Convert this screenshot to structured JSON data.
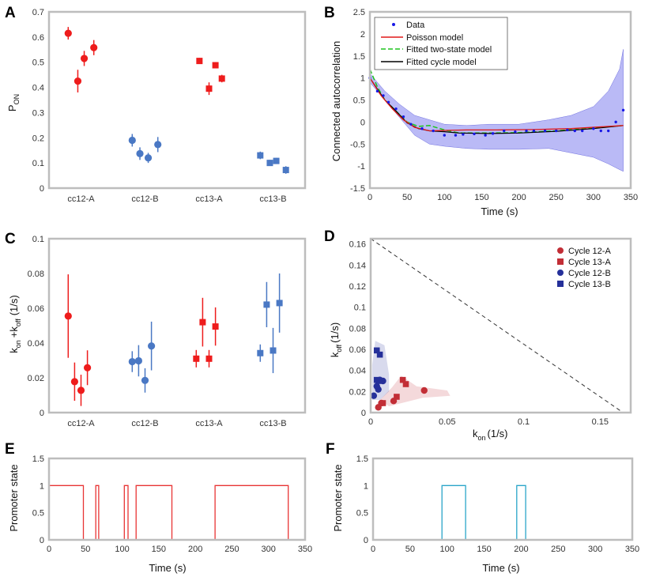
{
  "figure": {
    "colors": {
      "red": "#ee1c1c",
      "blue": "#4a78c4",
      "dark_red": "#c22e36",
      "navy": "#25309a",
      "frame": "#bdbdbd",
      "band": "#8c8cf0",
      "green": "#1ec41e",
      "black": "#000000",
      "trace_red": "#e83434",
      "trace_teal": "#2aa5c9"
    }
  },
  "chart_data": [
    {
      "id": "A",
      "panel_label": "A",
      "type": "scatter",
      "ylabel": "P",
      "ylabel_sub": "ON",
      "ylim": [
        0,
        0.7
      ],
      "yticks": [
        "0",
        "0.1",
        "0.2",
        "0.3",
        "0.4",
        "0.5",
        "0.6",
        "0.7"
      ],
      "categories": [
        "cc12-A",
        "cc12-B",
        "cc13-A",
        "cc13-B"
      ],
      "groups": [
        {
          "category": "cc12-A",
          "color": "red",
          "marker": "circle",
          "x_offsets": [
            -0.2,
            -0.05,
            0.05,
            0.2
          ],
          "values": [
            0.615,
            0.425,
            0.515,
            0.558
          ],
          "err": [
            0.025,
            0.045,
            0.03,
            0.03
          ]
        },
        {
          "category": "cc12-B",
          "color": "blue",
          "marker": "circle",
          "x_offsets": [
            -0.2,
            -0.08,
            0.05,
            0.2
          ],
          "values": [
            0.19,
            0.137,
            0.12,
            0.173
          ],
          "err": [
            0.025,
            0.025,
            0.02,
            0.03
          ]
        },
        {
          "category": "cc13-A",
          "color": "red",
          "marker": "square",
          "x_offsets": [
            -0.15,
            0.0,
            0.1,
            0.2
          ],
          "values": [
            0.505,
            0.395,
            0.488,
            0.435
          ],
          "err": [
            0.012,
            0.025,
            0.012,
            0.015
          ]
        },
        {
          "category": "cc13-B",
          "color": "blue",
          "marker": "square",
          "x_offsets": [
            -0.2,
            -0.05,
            0.05,
            0.2
          ],
          "values": [
            0.13,
            0.1,
            0.108,
            0.072
          ],
          "err": [
            0.015,
            0.012,
            0.012,
            0.015
          ]
        }
      ]
    },
    {
      "id": "B",
      "panel_label": "B",
      "type": "line",
      "xlabel": "Time (s)",
      "ylabel": "Connected autocorrelation",
      "xlim": [
        0,
        350
      ],
      "ylim": [
        -1.5,
        2.5
      ],
      "xticks": [
        "0",
        "50",
        "100",
        "150",
        "200",
        "250",
        "300",
        "350"
      ],
      "yticks": [
        "-1.5",
        "-1",
        "-0.5",
        "0",
        "0.5",
        "1",
        "1.5",
        "2",
        "2.5"
      ],
      "legend_position": "top-left",
      "legend": [
        "Data",
        "Poisson model",
        "Fitted two-state model",
        "Fitted cycle model"
      ],
      "data_points": {
        "x": [
          0,
          10,
          18,
          25,
          35,
          45,
          55,
          70,
          85,
          100,
          115,
          125,
          140,
          155,
          165,
          180,
          195,
          210,
          220,
          235,
          250,
          265,
          275,
          285,
          300,
          310,
          320,
          330,
          340
        ],
        "y": [
          1.0,
          0.7,
          0.6,
          0.45,
          0.3,
          0.12,
          -0.05,
          -0.15,
          -0.2,
          -0.3,
          -0.3,
          -0.28,
          -0.27,
          -0.3,
          -0.26,
          -0.2,
          -0.22,
          -0.2,
          -0.2,
          -0.2,
          -0.2,
          -0.18,
          -0.2,
          -0.2,
          -0.15,
          -0.2,
          -0.2,
          0.0,
          0.27
        ]
      },
      "poisson": {
        "x": [
          0,
          15,
          30,
          45,
          60,
          80,
          100,
          130,
          170,
          220,
          270,
          320,
          340
        ],
        "y": [
          1.0,
          0.6,
          0.3,
          0.05,
          -0.12,
          -0.2,
          -0.19,
          -0.18,
          -0.18,
          -0.17,
          -0.15,
          -0.1,
          -0.08
        ]
      },
      "two_state": {
        "x": [
          0,
          10,
          20,
          35,
          50,
          65,
          80,
          100,
          120,
          160,
          200,
          250,
          300,
          340
        ],
        "y": [
          1.2,
          0.8,
          0.5,
          0.25,
          0.0,
          -0.1,
          -0.08,
          -0.18,
          -0.25,
          -0.25,
          -0.24,
          -0.2,
          -0.14,
          -0.08
        ]
      },
      "cycle": {
        "x": [
          0,
          10,
          20,
          35,
          50,
          65,
          80,
          100,
          120,
          160,
          200,
          250,
          300,
          340
        ],
        "y": [
          1.0,
          0.75,
          0.5,
          0.25,
          -0.02,
          -0.15,
          -0.2,
          -0.22,
          -0.25,
          -0.26,
          -0.25,
          -0.21,
          -0.15,
          -0.08
        ]
      },
      "band_upper": {
        "x": [
          0,
          20,
          40,
          60,
          80,
          100,
          130,
          160,
          200,
          240,
          270,
          300,
          320,
          335,
          340
        ],
        "y": [
          1.1,
          0.7,
          0.4,
          0.15,
          0.05,
          -0.05,
          -0.08,
          -0.05,
          -0.05,
          0.05,
          0.15,
          0.35,
          0.7,
          1.2,
          1.65
        ]
      },
      "band_lower": {
        "x": [
          0,
          20,
          40,
          60,
          80,
          100,
          130,
          160,
          200,
          240,
          270,
          300,
          320,
          335,
          340
        ],
        "y": [
          0.9,
          0.5,
          0.1,
          -0.3,
          -0.5,
          -0.55,
          -0.6,
          -0.62,
          -0.62,
          -0.6,
          -0.7,
          -0.8,
          -0.95,
          -1.08,
          -1.12
        ]
      }
    },
    {
      "id": "C",
      "panel_label": "C",
      "type": "scatter",
      "ylabel": "k",
      "ylabel_sub1": "on",
      "ylabel_mid": "+k",
      "ylabel_sub2": "off",
      "ylabel_unit": "(1/s)",
      "ylim": [
        0,
        0.1
      ],
      "yticks": [
        "0",
        "0.02",
        "0.04",
        "0.06",
        "0.08",
        "0.1"
      ],
      "categories": [
        "cc12-A",
        "cc12-B",
        "cc13-A",
        "cc13-B"
      ],
      "groups": [
        {
          "category": "cc12-A",
          "color": "red",
          "marker": "circle",
          "x_offsets": [
            -0.2,
            -0.1,
            0.0,
            0.1
          ],
          "values": [
            0.0555,
            0.0178,
            0.0128,
            0.0258
          ],
          "err": [
            0.024,
            0.011,
            0.009,
            0.01
          ]
        },
        {
          "category": "cc12-B",
          "color": "blue",
          "marker": "circle",
          "x_offsets": [
            -0.2,
            -0.1,
            0.0,
            0.1
          ],
          "values": [
            0.0293,
            0.0298,
            0.0185,
            0.0383
          ],
          "err": [
            0.006,
            0.009,
            0.007,
            0.014
          ]
        },
        {
          "category": "cc13-A",
          "color": "red",
          "marker": "square",
          "x_offsets": [
            -0.2,
            -0.1,
            0.0,
            0.1
          ],
          "values": [
            0.031,
            0.052,
            0.031,
            0.0495
          ],
          "err": [
            0.005,
            0.014,
            0.005,
            0.011
          ]
        },
        {
          "category": "cc13-B",
          "color": "blue",
          "marker": "square",
          "x_offsets": [
            -0.2,
            -0.1,
            0.0,
            0.1
          ],
          "values": [
            0.0342,
            0.0621,
            0.0357,
            0.063
          ],
          "err": [
            0.005,
            0.013,
            0.013,
            0.017
          ]
        }
      ]
    },
    {
      "id": "D",
      "panel_label": "D",
      "type": "scatter",
      "xlabel": "k",
      "xlabel_sub": "on",
      "xlabel_unit": "(1/s)",
      "ylabel": "k",
      "ylabel_sub": "off",
      "ylabel_unit": "(1/s)",
      "xlim": [
        0,
        0.17
      ],
      "ylim": [
        0,
        0.165
      ],
      "xticks": [
        "0",
        "0.05",
        "0.1",
        "0.15"
      ],
      "yticks": [
        "0",
        "0.02",
        "0.04",
        "0.06",
        "0.08",
        "0.1",
        "0.12",
        "0.14",
        "0.16"
      ],
      "legend_position": "top-right",
      "reference_line": {
        "x": [
          0,
          0.165
        ],
        "y": [
          0.165,
          0
        ]
      },
      "series": [
        {
          "name": "Cycle 12-A",
          "color": "dark_red",
          "marker": "circle",
          "x": [
            0.005,
            0.007,
            0.015,
            0.035
          ],
          "y": [
            0.005,
            0.009,
            0.011,
            0.021
          ]
        },
        {
          "name": "Cycle 13-A",
          "color": "dark_red",
          "marker": "square",
          "x": [
            0.008,
            0.017,
            0.021,
            0.023
          ],
          "y": [
            0.009,
            0.015,
            0.031,
            0.027
          ]
        },
        {
          "name": "Cycle 12-B",
          "color": "navy",
          "marker": "circle",
          "x": [
            0.002,
            0.004,
            0.005,
            0.008,
            0.006
          ],
          "y": [
            0.016,
            0.025,
            0.022,
            0.03,
            0.031
          ]
        },
        {
          "name": "Cycle 13-B",
          "color": "navy",
          "marker": "square",
          "x": [
            0.004,
            0.006,
            0.004,
            0.005
          ],
          "y": [
            0.059,
            0.055,
            0.031,
            0.03
          ]
        }
      ],
      "uncertainty_regions": [
        {
          "color": "dark_red",
          "points": [
            [
              0.012,
              0.006
            ],
            [
              0.034,
              0.014
            ],
            [
              0.052,
              0.016
            ],
            [
              0.05,
              0.021
            ],
            [
              0.03,
              0.025
            ],
            [
              0.02,
              0.035
            ],
            [
              0.014,
              0.024
            ],
            [
              0.006,
              0.012
            ]
          ]
        },
        {
          "color": "navy",
          "points": [
            [
              0.001,
              0.012
            ],
            [
              0.006,
              0.012
            ],
            [
              0.012,
              0.02
            ],
            [
              0.012,
              0.036
            ],
            [
              0.009,
              0.064
            ],
            [
              0.003,
              0.068
            ],
            [
              0.001,
              0.045
            ]
          ]
        }
      ]
    },
    {
      "id": "E",
      "panel_label": "E",
      "type": "line",
      "xlabel": "Time (s)",
      "ylabel": "Promoter state",
      "xlim": [
        0,
        350
      ],
      "ylim": [
        0,
        1.5
      ],
      "xticks": [
        "0",
        "50",
        "100",
        "150",
        "200",
        "250",
        "300",
        "350"
      ],
      "yticks": [
        "0",
        "0.5",
        "1",
        "1.5"
      ],
      "color": "trace_red",
      "on_intervals": [
        [
          0,
          47
        ],
        [
          64,
          68
        ],
        [
          103,
          108
        ],
        [
          119,
          168
        ],
        [
          227,
          327
        ]
      ]
    },
    {
      "id": "F",
      "panel_label": "F",
      "type": "line",
      "xlabel": "Time (s)",
      "ylabel": "Promoter state",
      "xlim": [
        0,
        350
      ],
      "ylim": [
        0,
        1.5
      ],
      "xticks": [
        "0",
        "50",
        "100",
        "150",
        "200",
        "250",
        "300",
        "350"
      ],
      "yticks": [
        "0",
        "0.5",
        "1",
        "1.5"
      ],
      "color": "trace_teal",
      "on_intervals": [
        [
          93,
          125
        ],
        [
          194,
          206
        ]
      ]
    }
  ]
}
